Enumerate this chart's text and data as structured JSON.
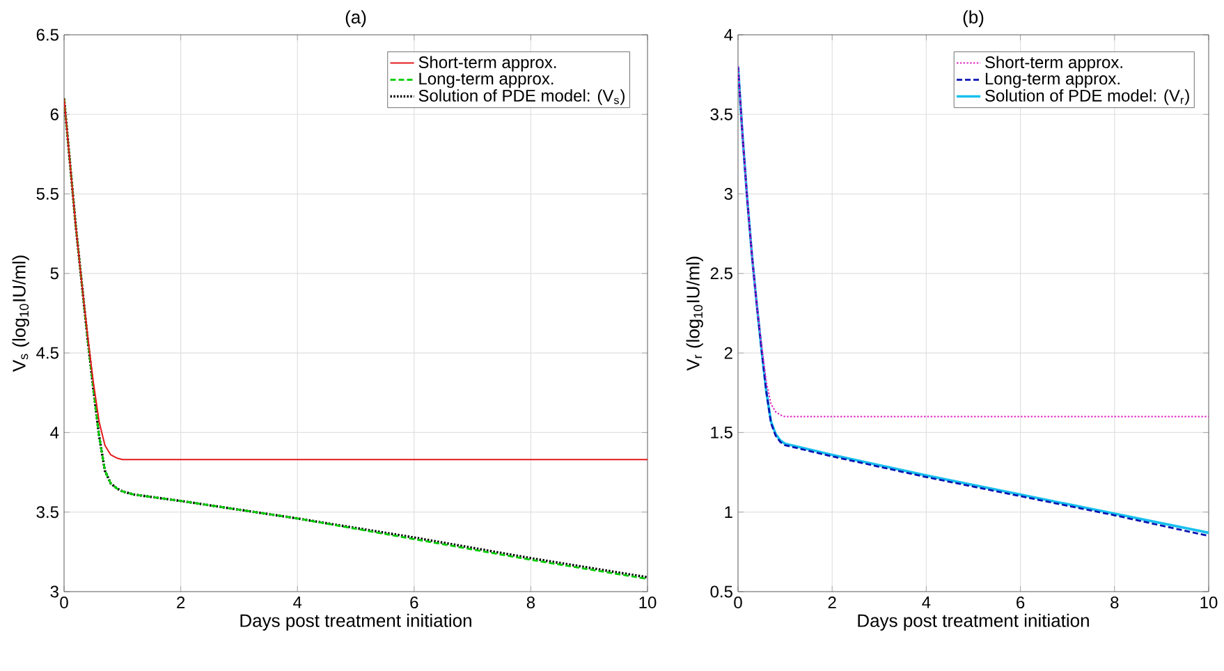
{
  "chart_data": [
    {
      "type": "line",
      "title": "(a)",
      "xlabel": "Days post treatment initiation",
      "ylabel": "V$_{s}$ (log$_{10}$IU/ml)",
      "xlim": [
        0,
        10
      ],
      "ylim": [
        3,
        6.5
      ],
      "xticks": [
        0,
        2,
        4,
        6,
        8,
        10
      ],
      "yticks": [
        3,
        3.5,
        4,
        4.5,
        5,
        5.5,
        6,
        6.5
      ],
      "grid": true,
      "legend": "top right",
      "series": [
        {
          "name": "Short-term approx.",
          "color": "#e41a1c",
          "line_style": "solid",
          "x": [
            0,
            0.1,
            0.2,
            0.3,
            0.4,
            0.5,
            0.6,
            0.7,
            0.8,
            0.9,
            1,
            2,
            4,
            6,
            8,
            10
          ],
          "values": [
            6.1,
            5.7,
            5.3,
            4.95,
            4.62,
            4.32,
            4.07,
            3.92,
            3.86,
            3.84,
            3.83,
            3.83,
            3.83,
            3.83,
            3.83,
            3.83
          ]
        },
        {
          "name": "Long-term approx.",
          "color": "#00cc00",
          "line_style": "dashed",
          "x": [
            0,
            0.1,
            0.2,
            0.3,
            0.4,
            0.5,
            0.6,
            0.7,
            0.8,
            0.9,
            1,
            1.2,
            2,
            4,
            6,
            8,
            10
          ],
          "values": [
            6.1,
            5.7,
            5.3,
            4.95,
            4.6,
            4.28,
            3.98,
            3.76,
            3.68,
            3.65,
            3.63,
            3.61,
            3.57,
            3.46,
            3.33,
            3.2,
            3.08
          ]
        },
        {
          "name": "Solution of PDE model: (V$_{s}$)",
          "color": "#000000",
          "line_style": "dotted",
          "x": [
            0,
            0.1,
            0.2,
            0.3,
            0.4,
            0.5,
            0.6,
            0.7,
            0.8,
            0.9,
            1,
            1.2,
            2,
            4,
            6,
            8,
            10
          ],
          "values": [
            6.1,
            5.7,
            5.3,
            4.95,
            4.6,
            4.28,
            3.98,
            3.76,
            3.68,
            3.65,
            3.63,
            3.61,
            3.57,
            3.46,
            3.34,
            3.21,
            3.09
          ]
        }
      ]
    },
    {
      "type": "line",
      "title": "(b)",
      "xlabel": "Days post treatment initiation",
      "ylabel": "V$_{r}$ (log$_{10}$IU/ml)",
      "xlim": [
        0,
        10
      ],
      "ylim": [
        0.5,
        4
      ],
      "xticks": [
        0,
        2,
        4,
        6,
        8,
        10
      ],
      "yticks": [
        0.5,
        1,
        1.5,
        2,
        2.5,
        3,
        3.5,
        4
      ],
      "grid": true,
      "legend": "top right",
      "series": [
        {
          "name": "Short-term approx.",
          "color": "#e020c0",
          "line_style": "dotted",
          "x": [
            0,
            0.1,
            0.2,
            0.3,
            0.4,
            0.5,
            0.6,
            0.7,
            0.8,
            0.9,
            1,
            2,
            4,
            6,
            8,
            10
          ],
          "values": [
            3.8,
            3.35,
            2.95,
            2.6,
            2.3,
            2.05,
            1.82,
            1.68,
            1.63,
            1.61,
            1.6,
            1.6,
            1.6,
            1.6,
            1.6,
            1.6
          ]
        },
        {
          "name": "Long-term approx.",
          "color": "#0a14b0",
          "line_style": "dashed",
          "x": [
            0,
            0.1,
            0.2,
            0.3,
            0.4,
            0.5,
            0.6,
            0.7,
            0.8,
            0.9,
            1,
            2,
            4,
            6,
            8,
            10
          ],
          "values": [
            3.8,
            3.35,
            2.95,
            2.6,
            2.3,
            2.02,
            1.76,
            1.56,
            1.48,
            1.44,
            1.42,
            1.35,
            1.22,
            1.1,
            0.98,
            0.85
          ]
        },
        {
          "name": "Solution of PDE model: (V$_{r}$)",
          "color": "#18c0ee",
          "line_style": "solid",
          "x": [
            0,
            0.1,
            0.2,
            0.3,
            0.4,
            0.5,
            0.6,
            0.7,
            0.8,
            0.9,
            1,
            2,
            4,
            6,
            8,
            10
          ],
          "values": [
            3.8,
            3.35,
            2.95,
            2.6,
            2.3,
            2.02,
            1.76,
            1.57,
            1.49,
            1.45,
            1.43,
            1.36,
            1.23,
            1.11,
            0.99,
            0.87
          ]
        }
      ]
    }
  ]
}
